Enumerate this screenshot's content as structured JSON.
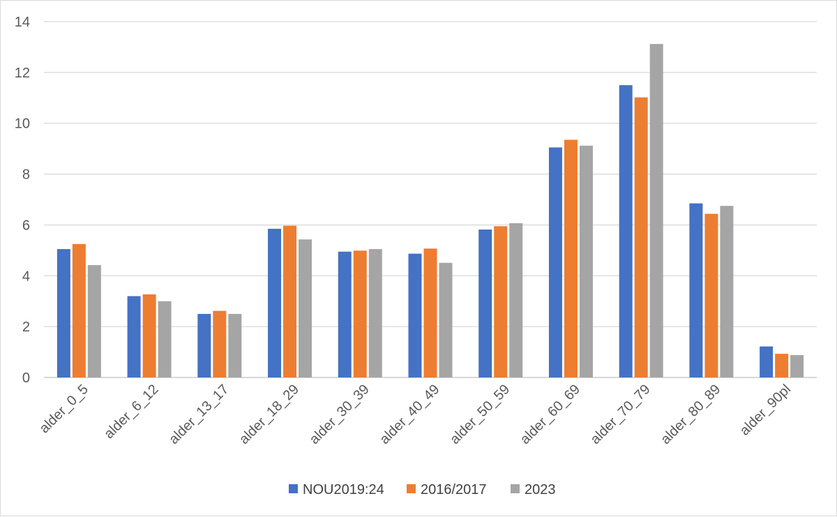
{
  "chart_data": {
    "type": "bar",
    "categories": [
      "alder_0_5",
      "alder_6_12",
      "alder_13_17",
      "alder_18_29",
      "alder_30_39",
      "alder_40_49",
      "alder_50_59",
      "alder_60_69",
      "alder_70_79",
      "alder_80_89",
      "alder_90pl"
    ],
    "series": [
      {
        "name": "NOU2019:24",
        "color": "#4472c4",
        "values": [
          5.05,
          3.2,
          2.5,
          5.85,
          4.95,
          4.87,
          5.82,
          9.05,
          11.5,
          6.85,
          1.22
        ]
      },
      {
        "name": "2016/2017",
        "color": "#ed7d31",
        "values": [
          5.25,
          3.27,
          2.62,
          5.97,
          4.99,
          5.07,
          5.95,
          9.35,
          11.02,
          6.44,
          0.93
        ]
      },
      {
        "name": "2023",
        "color": "#a5a5a5",
        "values": [
          4.42,
          3.0,
          2.5,
          5.43,
          5.05,
          4.51,
          6.07,
          9.12,
          13.12,
          6.75,
          0.88
        ]
      }
    ],
    "ylim": [
      0,
      14
    ],
    "yticks": [
      "0",
      "2",
      "4",
      "6",
      "8",
      "10",
      "12",
      "14"
    ],
    "grid": true,
    "legend_position": "bottom",
    "title": "",
    "xlabel": "",
    "ylabel": ""
  }
}
